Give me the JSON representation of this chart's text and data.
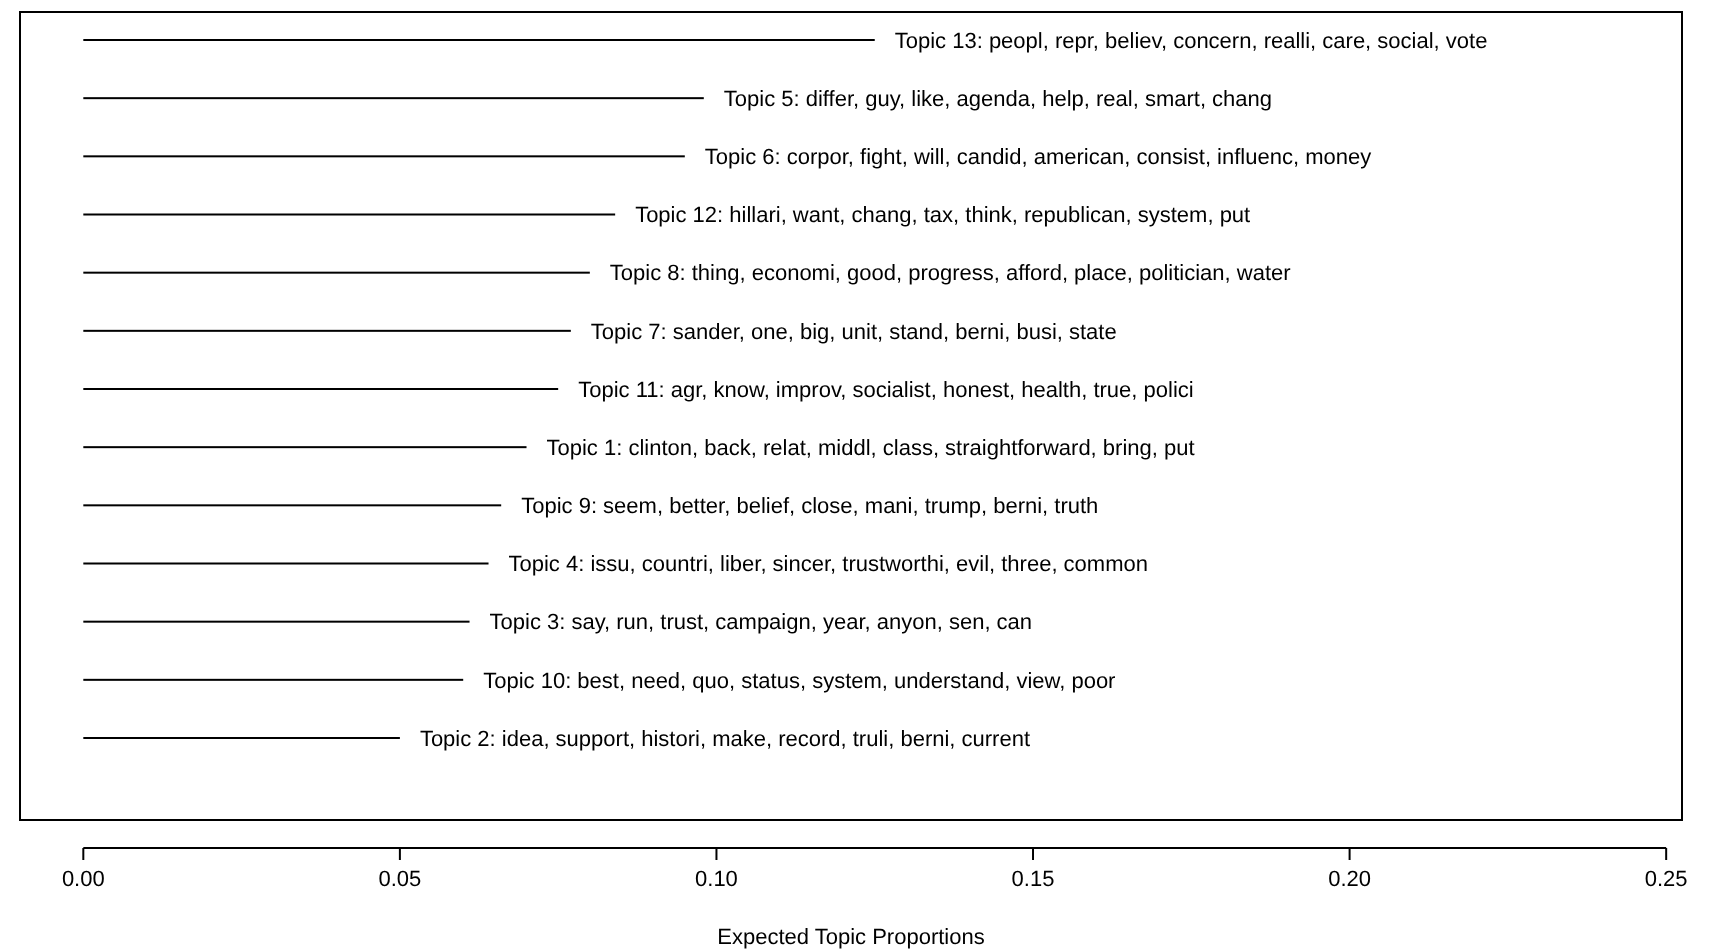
{
  "chart_data": {
    "type": "bar",
    "orientation": "horizontal",
    "xlabel": "Expected Topic Proportions",
    "categories": [
      "Topic 13: peopl, repr, believ, concern, realli, care, social, vote",
      "Topic 5: differ, guy, like, agenda, help, real, smart, chang",
      "Topic 6: corpor, fight, will, candid, american, consist, influenc, money",
      "Topic 12: hillari, want, chang, tax, think, republican, system, put",
      "Topic 8: thing, economi, good, progress, afford, place, politician, water",
      "Topic 7: sander, one, big, unit, stand, berni, busi, state",
      "Topic 11: agr, know, improv, socialist, honest, health, true, polici",
      "Topic 1: clinton, back, relat, middl, class, straightforward, bring, put",
      "Topic 9: seem, better, belief, close, mani, trump, berni, truth",
      "Topic 4: issu, countri, liber, sincer, trustworthi, evil, three, common",
      "Topic 3: say, run, trust, campaign, year, anyon, sen, can",
      "Topic 10: best, need, quo, status, system, understand, view, poor",
      "Topic 2: idea, support, histori, make, record, truli, berni, current"
    ],
    "values": [
      0.125,
      0.098,
      0.095,
      0.084,
      0.08,
      0.077,
      0.075,
      0.07,
      0.066,
      0.064,
      0.061,
      0.06,
      0.05
    ],
    "color": "#000000",
    "xlim": [
      -0.01,
      0.2525
    ],
    "xticks": [
      {
        "value": 0,
        "label": "0.00"
      },
      {
        "value": 0.05,
        "label": "0.05"
      },
      {
        "value": 0.1,
        "label": "0.10"
      },
      {
        "value": 0.15,
        "label": "0.15"
      },
      {
        "value": 0.2,
        "label": "0.20"
      },
      {
        "value": 0.25,
        "label": "0.25"
      }
    ],
    "tick_labels": "x",
    "grid": false
  }
}
